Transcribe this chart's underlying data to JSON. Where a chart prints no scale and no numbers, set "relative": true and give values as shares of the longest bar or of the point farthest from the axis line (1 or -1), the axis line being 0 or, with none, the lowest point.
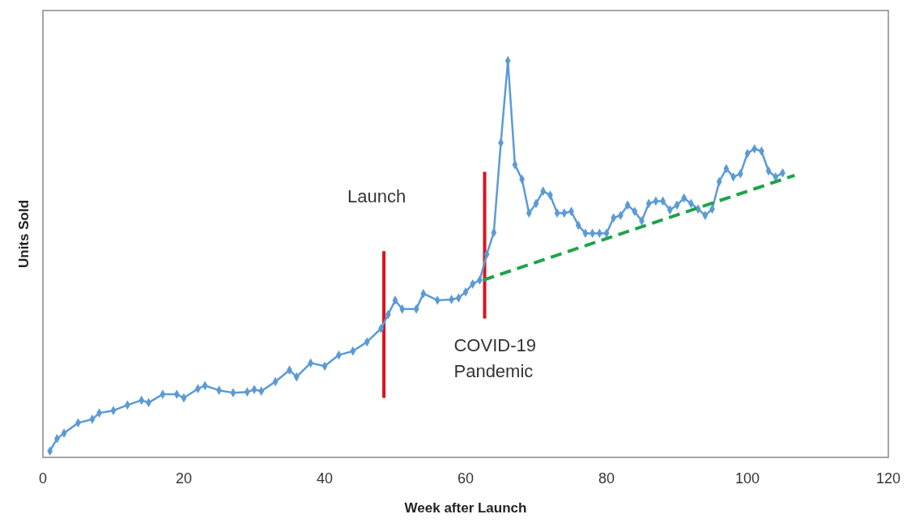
{
  "chart_data": {
    "type": "line",
    "xlabel": "Week  after Launch",
    "ylabel": "Units Sold",
    "relative": true,
    "xlim": [
      0,
      120
    ],
    "xticks": [
      0,
      20,
      40,
      60,
      80,
      100,
      120
    ],
    "grid": false,
    "series": [
      {
        "color": "#5b9bd5",
        "marker": "diamond",
        "line_style": "solid",
        "x": [
          1,
          2,
          3,
          5,
          7,
          8,
          10,
          12,
          14,
          15,
          17,
          19,
          20,
          22,
          23,
          25,
          27,
          29,
          30,
          31,
          33,
          35,
          36,
          38,
          40,
          42,
          44,
          46,
          48,
          49,
          50,
          51,
          53,
          54,
          56,
          58,
          59,
          60,
          61,
          62,
          63,
          64,
          65,
          66,
          67,
          68,
          69,
          70,
          71,
          72,
          73,
          74,
          75,
          76,
          77,
          78,
          79,
          80,
          81,
          82,
          83,
          84,
          85,
          86,
          87,
          88,
          89,
          90,
          91,
          92,
          93,
          94,
          95,
          96,
          97,
          98,
          99,
          100,
          101,
          102,
          103,
          104,
          105
        ],
        "values": [
          0.016,
          0.047,
          0.061,
          0.087,
          0.096,
          0.112,
          0.118,
          0.132,
          0.144,
          0.138,
          0.159,
          0.159,
          0.15,
          0.173,
          0.181,
          0.169,
          0.163,
          0.165,
          0.171,
          0.167,
          0.191,
          0.22,
          0.203,
          0.238,
          0.23,
          0.258,
          0.268,
          0.291,
          0.325,
          0.36,
          0.396,
          0.374,
          0.374,
          0.413,
          0.396,
          0.398,
          0.402,
          0.417,
          0.437,
          0.447,
          0.512,
          0.567,
          0.793,
          1,
          0.738,
          0.701,
          0.616,
          0.64,
          0.671,
          0.661,
          0.616,
          0.616,
          0.62,
          0.585,
          0.565,
          0.565,
          0.565,
          0.565,
          0.604,
          0.61,
          0.636,
          0.62,
          0.596,
          0.64,
          0.646,
          0.646,
          0.624,
          0.636,
          0.654,
          0.64,
          0.626,
          0.61,
          0.626,
          0.695,
          0.728,
          0.707,
          0.715,
          0.766,
          0.778,
          0.772,
          0.722,
          0.707,
          0.717
        ]
      },
      {
        "color": "#1fa34a",
        "marker": "none",
        "line_style": "dashed",
        "x": [
          62.5,
          106.7
        ],
        "values": [
          0.447,
          0.711
        ]
      }
    ],
    "ref_lines": [
      {
        "axis": "x",
        "value": 48.4,
        "label": "Launch",
        "color": "#d9141e",
        "line_style": "solid"
      },
      {
        "axis": "x",
        "value": 62.7,
        "label": "COVID-19 Pandemic",
        "color": "#d9141e",
        "line_style": "solid"
      }
    ]
  }
}
